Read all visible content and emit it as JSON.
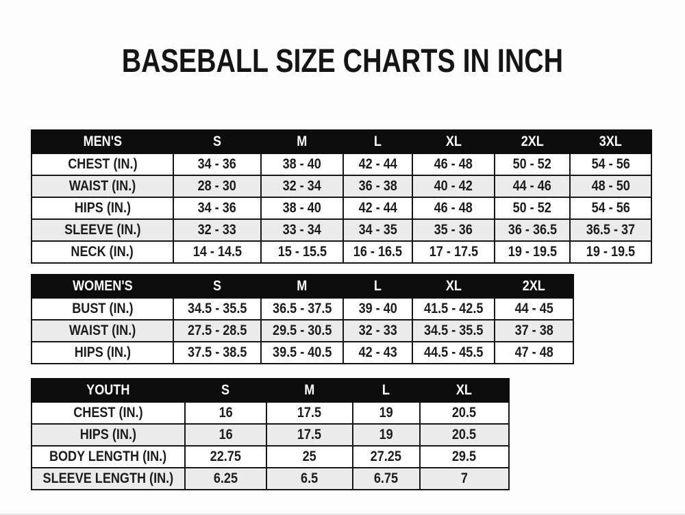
{
  "page": {
    "title": "BASEBALL SIZE CHARTS IN INCH"
  },
  "colors": {
    "header_bg": "#0d0d0d",
    "header_text": "#ffffff",
    "row_bg": "#ffffff",
    "row_alt_bg": "#ebebeb",
    "border": "#161616",
    "page_bg": "#fdfdfd",
    "text": "#1c1c1c"
  },
  "tables": [
    {
      "name": "mens",
      "header": [
        "MEN'S",
        "S",
        "M",
        "L",
        "XL",
        "2XL",
        "3XL"
      ],
      "rows": [
        [
          "CHEST (IN.)",
          "34 - 36",
          "38 - 40",
          "42 - 44",
          "46 - 48",
          "50 - 52",
          "54 - 56"
        ],
        [
          "WAIST (IN.)",
          "28 - 30",
          "32 - 34",
          "36 - 38",
          "40 - 42",
          "44 - 46",
          "48 - 50"
        ],
        [
          "HIPS (IN.)",
          "34 - 36",
          "38 - 40",
          "42 - 44",
          "46 - 48",
          "50 - 52",
          "54 - 56"
        ],
        [
          "SLEEVE (IN.)",
          "32 - 33",
          "33 - 34",
          "34 - 35",
          "35 - 36",
          "36 - 36.5",
          "36.5 - 37"
        ],
        [
          "NECK (IN.)",
          "14 - 14.5",
          "15 - 15.5",
          "16 - 16.5",
          "17 - 17.5",
          "19 - 19.5",
          "19 - 19.5"
        ]
      ]
    },
    {
      "name": "womens",
      "header": [
        "WOMEN'S",
        "S",
        "M",
        "L",
        "XL",
        "2XL"
      ],
      "rows": [
        [
          "BUST (IN.)",
          "34.5 - 35.5",
          "36.5 - 37.5",
          "39 - 40",
          "41.5 - 42.5",
          "44 - 45"
        ],
        [
          "WAIST (IN.)",
          "27.5 - 28.5",
          "29.5 - 30.5",
          "32 - 33",
          "34.5 - 35.5",
          "37 - 38"
        ],
        [
          "HIPS (IN.)",
          "37.5 - 38.5",
          "39.5 - 40.5",
          "42 - 43",
          "44.5 - 45.5",
          "47 - 48"
        ]
      ]
    },
    {
      "name": "youth",
      "header": [
        "YOUTH",
        "S",
        "M",
        "L",
        "XL"
      ],
      "rows": [
        [
          "CHEST (IN.)",
          "16",
          "17.5",
          "19",
          "20.5"
        ],
        [
          "HIPS (IN.)",
          "16",
          "17.5",
          "19",
          "20.5"
        ],
        [
          "BODY LENGTH (IN.)",
          "22.75",
          "25",
          "27.25",
          "29.5"
        ],
        [
          "SLEEVE LENGTH (IN.)",
          "6.25",
          "6.5",
          "6.75",
          "7"
        ]
      ]
    }
  ]
}
